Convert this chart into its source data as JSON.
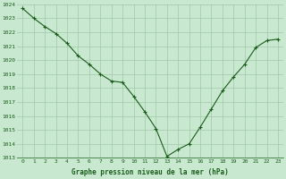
{
  "x": [
    0,
    1,
    2,
    3,
    4,
    5,
    6,
    7,
    8,
    9,
    10,
    11,
    12,
    13,
    14,
    15,
    16,
    17,
    18,
    19,
    20,
    21,
    22,
    23
  ],
  "y": [
    1023.7,
    1023.0,
    1022.4,
    1021.9,
    1021.2,
    1020.3,
    1019.7,
    1019.0,
    1018.5,
    1018.4,
    1017.4,
    1016.3,
    1015.1,
    1013.1,
    1013.6,
    1014.0,
    1015.2,
    1016.5,
    1017.8,
    1018.8,
    1019.7,
    1020.9,
    1021.4,
    1021.5
  ],
  "line_color": "#1a5c1a",
  "marker": "+",
  "background_color": "#c8e8d0",
  "grid_color": "#a0c8a8",
  "xlabel": "Graphe pression niveau de la mer (hPa)",
  "xlabel_color": "#1a5c1a",
  "tick_color": "#1a5c1a",
  "ylim_min": 1013,
  "ylim_max": 1024,
  "ytick_step": 1,
  "fig_bg": "#c8e8d0"
}
